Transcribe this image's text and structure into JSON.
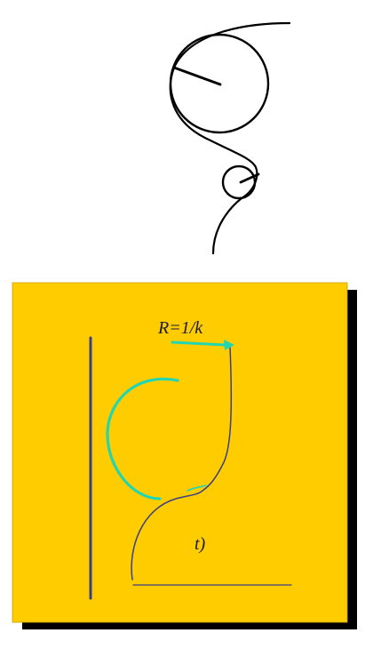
{
  "upper_figure": {
    "stroke_color": "#000000"
  },
  "lower_panel": {
    "background_color": "#ffcc00",
    "shadow_color": "#000000",
    "curve_color": "#3a3f8a",
    "osculating_circle_color": "#22d6b0",
    "arrow_color": "#22d6b0",
    "label_radius": "R=1/k",
    "label_parameter": "t)"
  }
}
